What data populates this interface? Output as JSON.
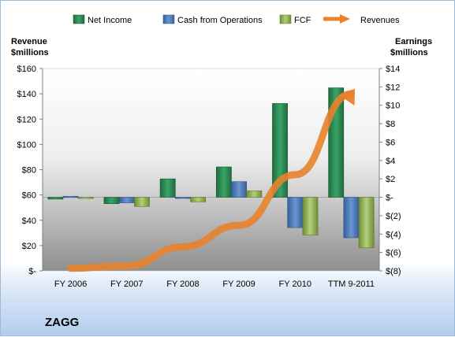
{
  "company_label": "ZAGG",
  "chart_data": {
    "type": "bar",
    "categories": [
      "FY 2006",
      "FY 2007",
      "FY 2008",
      "FY 2009",
      "FY 2010",
      "TTM 9-2011"
    ],
    "left_axis": {
      "label_line1": "Revenue",
      "label_line2": "$millions",
      "ylim": [
        0,
        160
      ],
      "ticks": [
        0,
        20,
        40,
        60,
        80,
        100,
        120,
        140,
        160
      ],
      "tick_labels": [
        "$-",
        "$20",
        "$40",
        "$60",
        "$80",
        "$100",
        "$120",
        "$140",
        "$160"
      ]
    },
    "right_axis": {
      "label_line1": "Earnings",
      "label_line2": "$millions",
      "ylim": [
        -8,
        14
      ],
      "ticks": [
        -8,
        -6,
        -4,
        -2,
        0,
        2,
        4,
        6,
        8,
        10,
        12,
        14
      ],
      "tick_labels": [
        "$(8)",
        "$(6)",
        "$(4)",
        "$(2)",
        "$-",
        "$2",
        "$4",
        "$6",
        "$8",
        "$10",
        "$12",
        "$14"
      ]
    },
    "series": [
      {
        "name": "Net Income",
        "axis": "right",
        "kind": "bar",
        "color": "#2e8b57",
        "values": [
          -0.2,
          -0.7,
          2.0,
          3.3,
          10.2,
          11.9
        ]
      },
      {
        "name": "Cash from Operations",
        "axis": "right",
        "kind": "bar",
        "color": "#4f7fbf",
        "values": [
          0.1,
          -0.6,
          -0.1,
          1.7,
          -3.3,
          -4.4
        ]
      },
      {
        "name": "FCF",
        "axis": "right",
        "kind": "bar",
        "color": "#9bbb59",
        "values": [
          -0.1,
          -1.0,
          -0.5,
          0.7,
          -4.1,
          -5.5
        ]
      },
      {
        "name": "Revenues",
        "axis": "left",
        "kind": "line",
        "color": "#e8822e",
        "values": [
          2,
          4,
          19,
          36,
          76,
          140
        ]
      }
    ],
    "legend_position": "top",
    "grid": false
  }
}
